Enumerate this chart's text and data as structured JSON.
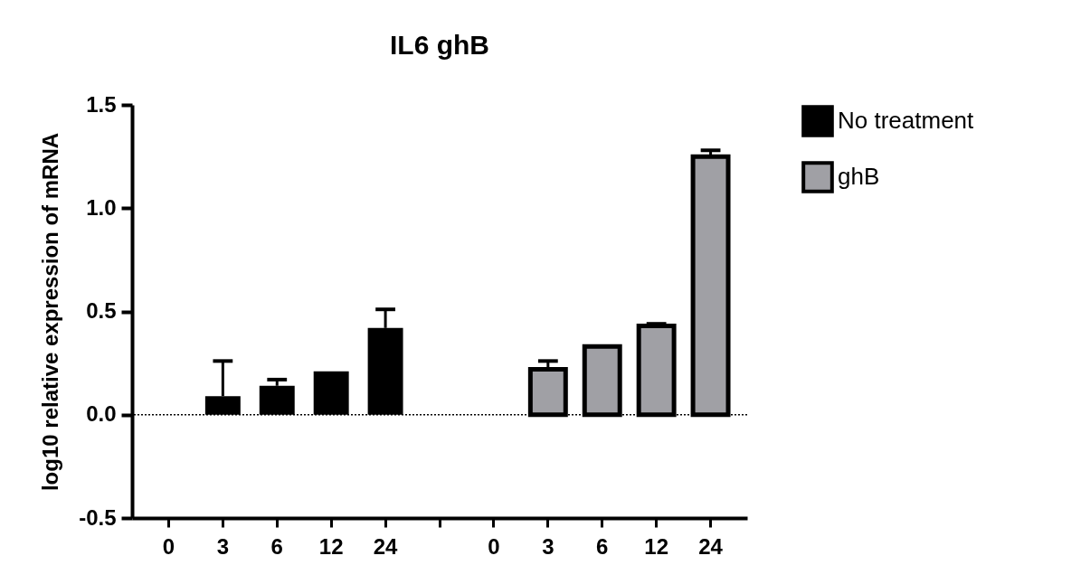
{
  "chart_data": {
    "type": "bar",
    "title": "IL6 ghB",
    "ylabel": "log10 relative expression of mRNA",
    "categories": [
      "0",
      "3",
      "6",
      "12",
      "24",
      null,
      "0",
      "3",
      "6",
      "12",
      "24"
    ],
    "series": [
      {
        "name": "No treatment",
        "color": "#000000",
        "values": [
          0,
          0.09,
          0.14,
          0.21,
          0.42,
          null,
          null,
          null,
          null,
          null,
          null
        ],
        "errors": [
          null,
          0.17,
          0.03,
          null,
          0.09,
          null,
          null,
          null,
          null,
          null,
          null
        ]
      },
      {
        "name": "ghB",
        "color": "#a0a0a5",
        "values": [
          null,
          null,
          null,
          null,
          null,
          null,
          0,
          0.22,
          0.33,
          0.43,
          1.25
        ],
        "errors": [
          null,
          null,
          null,
          null,
          null,
          null,
          null,
          0.04,
          null,
          0.01,
          0.03
        ]
      }
    ],
    "ylim": [
      -0.5,
      1.5
    ],
    "yticks": [
      {
        "value": -0.5,
        "label": "-0.5"
      },
      {
        "value": 0,
        "label": "0.0"
      },
      {
        "value": 0.5,
        "label": "0.5"
      },
      {
        "value": 1,
        "label": "1.0"
      },
      {
        "value": 1.5,
        "label": "1.5"
      }
    ],
    "ref_lines": [
      {
        "axis": "y",
        "value": 0,
        "line_style": "dotted"
      }
    ],
    "grid": false,
    "legend": "top right"
  }
}
